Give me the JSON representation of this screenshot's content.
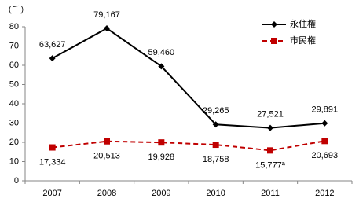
{
  "chart_data": {
    "type": "line",
    "y_label": "（千）",
    "categories": [
      "2007",
      "2008",
      "2009",
      "2010",
      "2011",
      "2012"
    ],
    "series": [
      {
        "name": "永住権",
        "color": "#000000",
        "marker": "diamond",
        "dashed": false,
        "values": [
          63.627,
          79.167,
          59.46,
          29.265,
          27.521,
          29.891
        ],
        "value_labels": [
          "63,627",
          "79,167",
          "59,460",
          "29,265",
          "27,521",
          "29,891"
        ]
      },
      {
        "name": "市民権",
        "color": "#c00000",
        "marker": "square",
        "dashed": true,
        "values": [
          17.334,
          20.513,
          19.928,
          18.758,
          15.777,
          20.693
        ],
        "value_labels": [
          "17,334",
          "20,513",
          "19,928",
          "18,758",
          "15,777ª",
          "20,693"
        ]
      }
    ],
    "ylim": [
      0,
      80
    ],
    "yticks": [
      0,
      10,
      20,
      30,
      40,
      50,
      60,
      70,
      80
    ],
    "grid": false,
    "legend": "upper right"
  }
}
